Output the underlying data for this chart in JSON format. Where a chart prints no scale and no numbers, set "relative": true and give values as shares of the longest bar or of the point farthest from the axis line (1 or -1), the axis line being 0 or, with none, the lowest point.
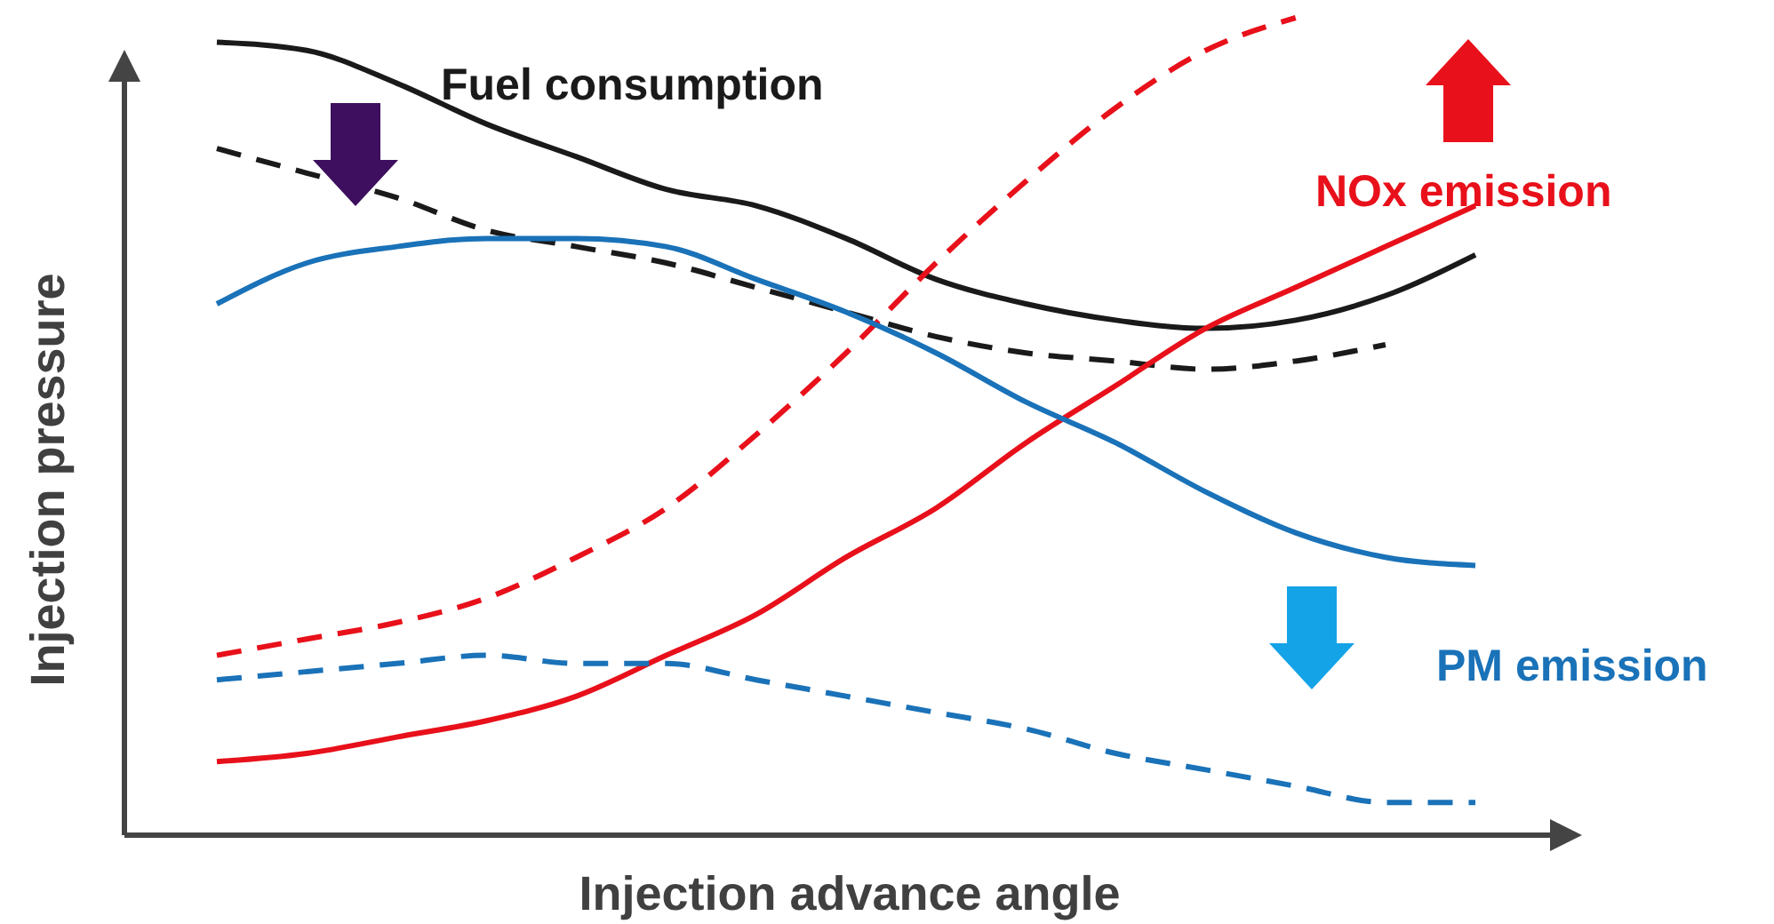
{
  "chart_data": {
    "type": "line",
    "relative": true,
    "xlabel": "Injection advance angle",
    "ylabel": "Injection pressure",
    "categories": [
      null,
      null,
      null,
      null,
      null,
      null,
      null,
      null,
      null,
      null,
      null,
      null,
      null,
      null,
      null
    ],
    "marker": "none",
    "series": [
      {
        "name": "Fuel consumption",
        "color": "#1a1a1a",
        "line_style": "solid",
        "values": [
          0.97,
          0.96,
          0.92,
          0.87,
          0.83,
          0.79,
          0.77,
          0.73,
          0.68,
          0.65,
          0.63,
          0.62,
          0.63,
          0.66,
          0.71
        ]
      },
      {
        "color": "#1a1a1a",
        "line_style": "dashed",
        "values": [
          0.84,
          0.81,
          0.78,
          0.74,
          0.72,
          0.7,
          0.67,
          0.64,
          0.61,
          0.59,
          0.58,
          0.57,
          0.58,
          0.6,
          null
        ]
      },
      {
        "name": "NOx emission",
        "color": "#e8101a",
        "line_style": "solid",
        "values": [
          0.09,
          0.1,
          0.12,
          0.14,
          0.17,
          0.22,
          0.27,
          0.34,
          0.4,
          0.48,
          0.55,
          0.62,
          0.67,
          0.72,
          0.77
        ]
      },
      {
        "color": "#e8101a",
        "line_style": "dashed",
        "values": [
          0.22,
          0.24,
          0.26,
          0.29,
          0.34,
          0.4,
          0.49,
          0.59,
          0.7,
          0.8,
          0.89,
          0.96,
          1.0,
          null,
          null
        ]
      },
      {
        "name": "PM emission",
        "color": "#1a72b8",
        "line_style": "solid",
        "values": [
          0.65,
          0.7,
          0.72,
          0.73,
          0.73,
          0.72,
          0.68,
          0.64,
          0.59,
          0.53,
          0.48,
          0.42,
          0.37,
          0.34,
          0.33
        ]
      },
      {
        "color": "#1a72b8",
        "line_style": "dashed",
        "values": [
          0.19,
          0.2,
          0.21,
          0.22,
          0.21,
          0.21,
          0.19,
          0.17,
          0.15,
          0.13,
          0.1,
          0.08,
          0.06,
          0.04,
          0.04
        ]
      }
    ]
  }
}
